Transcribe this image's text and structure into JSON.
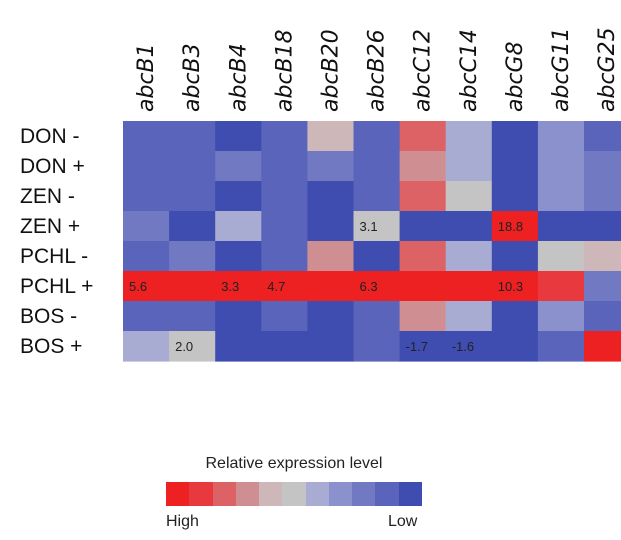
{
  "chart_data": {
    "type": "heatmap",
    "columns": [
      "abcB1",
      "abcB3",
      "abcB4",
      "abcB18",
      "abcB20",
      "abcB26",
      "abcC12",
      "abcC14",
      "abcG8",
      "abcG11",
      "abcG25"
    ],
    "rows": [
      "DON -",
      "DON +",
      "ZEN -",
      "ZEN +",
      "PCHL -",
      "PCHL +",
      "BOS -",
      "BOS +"
    ],
    "levels": [
      [
        9,
        9,
        10,
        9,
        4,
        9,
        2,
        6,
        10,
        7,
        9
      ],
      [
        9,
        9,
        8,
        9,
        8,
        9,
        3,
        6,
        10,
        7,
        8
      ],
      [
        9,
        9,
        10,
        9,
        10,
        9,
        2,
        5,
        10,
        7,
        8
      ],
      [
        8,
        10,
        6,
        9,
        10,
        5,
        10,
        10,
        0,
        10,
        10
      ],
      [
        9,
        8,
        10,
        9,
        3,
        10,
        2,
        6,
        10,
        5,
        4
      ],
      [
        0,
        0,
        0,
        0,
        0,
        0,
        0,
        0,
        0,
        1,
        8
      ],
      [
        9,
        9,
        10,
        9,
        10,
        9,
        3,
        6,
        10,
        7,
        9
      ],
      [
        6,
        5,
        10,
        10,
        10,
        9,
        10,
        10,
        10,
        9,
        0
      ]
    ],
    "cell_labels": [
      {
        "row": 3,
        "col": 5,
        "text": "3.1"
      },
      {
        "row": 3,
        "col": 8,
        "text": "18.8"
      },
      {
        "row": 5,
        "col": 0,
        "text": "5.6"
      },
      {
        "row": 5,
        "col": 2,
        "text": "3.3"
      },
      {
        "row": 5,
        "col": 3,
        "text": "4.7"
      },
      {
        "row": 5,
        "col": 5,
        "text": "6.3"
      },
      {
        "row": 5,
        "col": 8,
        "text": "10.3"
      },
      {
        "row": 7,
        "col": 1,
        "text": "2.0"
      },
      {
        "row": 7,
        "col": 6,
        "text": "-1.7"
      },
      {
        "row": 7,
        "col": 7,
        "text": "-1.6"
      }
    ],
    "legend": {
      "title": "Relative expression level",
      "high_label": "High",
      "low_label": "Low",
      "colors": [
        "#ee2122",
        "#e8393e",
        "#dd6266",
        "#cf8f92",
        "#cdb7b8",
        "#c4c4c4",
        "#a9acd2",
        "#8b91cc",
        "#7079c2",
        "#5a64ba",
        "#3f4cb0"
      ]
    }
  }
}
